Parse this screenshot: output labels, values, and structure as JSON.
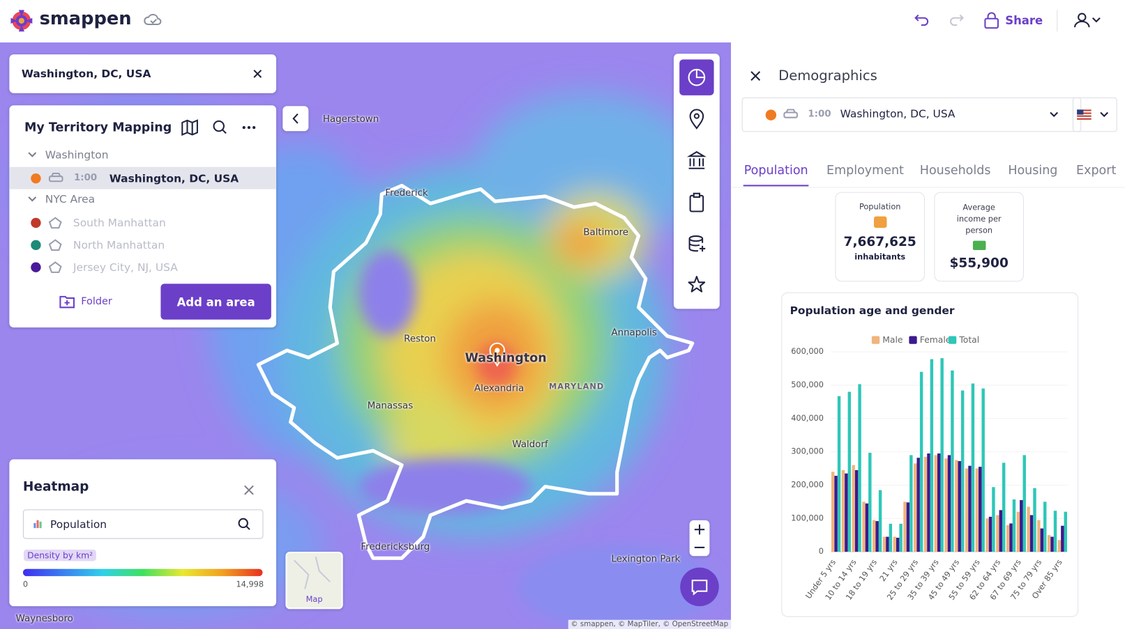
{
  "header": {
    "brand": "smappen",
    "share": "Share"
  },
  "search": {
    "query": "Washington, DC, USA"
  },
  "territory": {
    "title": "My Territory Mapping",
    "groups": [
      {
        "name": "Washington",
        "items": [
          {
            "time": "1:00",
            "label": "Washington, DC, USA"
          }
        ]
      },
      {
        "name": "NYC Area",
        "items": [
          {
            "label": "South Manhattan"
          },
          {
            "label": "North Manhattan"
          },
          {
            "label": "Jersey City, NJ, USA"
          }
        ]
      }
    ],
    "folder": "Folder",
    "add": "Add an area"
  },
  "heatmap": {
    "title": "Heatmap",
    "layer": "Population",
    "legend_title": "Density by km²",
    "min": "0",
    "max": "14,998"
  },
  "map": {
    "labels": [
      "Hagerstown",
      "Frederick",
      "Baltimore",
      "Reston",
      "Washington",
      "Alexandria",
      "MARYLAND",
      "Annapolis",
      "Manassas",
      "Waldorf",
      "Fredericksburg",
      "Lexington Park",
      "Waynesboro"
    ],
    "basemap": "Map",
    "attribution": "© smappen, © MapTiler, © OpenStreetMap"
  },
  "panel": {
    "title": "Demographics",
    "selector_time": "1:00",
    "selector_label": "Washington, DC, USA",
    "tabs": [
      "Population",
      "Employment",
      "Households",
      "Housing",
      "Export"
    ],
    "cards": [
      {
        "title": "Population",
        "value": "7,667,625",
        "unit": "inhabitants"
      },
      {
        "title": "Average income per person",
        "value": "$55,900"
      }
    ]
  },
  "chart_data": {
    "type": "bar",
    "title": "Population age and gender",
    "categories": [
      "Under 5 yrs",
      null,
      "10 to 14 yrs",
      null,
      "18 to 19 yrs",
      null,
      "21 yrs",
      null,
      "25 to 29 yrs",
      null,
      "35 to 39 yrs",
      null,
      "45 to 49 yrs",
      null,
      "55 to 59 yrs",
      null,
      "62 to 64 yrs",
      null,
      "67 to 69 yrs",
      null,
      "75 to 79 yrs",
      null,
      "Over 85 yrs"
    ],
    "series": [
      {
        "name": "Male",
        "color": "#f2b37e",
        "values": [
          240000,
          245000,
          260000,
          150000,
          95000,
          45000,
          45000,
          150000,
          265000,
          285000,
          290000,
          280000,
          275000,
          250000,
          250000,
          100000,
          110000,
          80000,
          120000,
          135000,
          95000,
          50000,
          35000
        ]
      },
      {
        "name": "Female",
        "color": "#3d1a8e",
        "values": [
          228000,
          235000,
          245000,
          145000,
          92000,
          45000,
          42000,
          148000,
          282000,
          295000,
          295000,
          290000,
          272000,
          258000,
          255000,
          105000,
          125000,
          85000,
          155000,
          110000,
          70000,
          45000,
          78000
        ]
      },
      {
        "name": "Total",
        "color": "#2ec7b8",
        "values": [
          467000,
          480000,
          503000,
          297000,
          185000,
          84000,
          84000,
          290000,
          540000,
          578000,
          581000,
          544000,
          484000,
          505000,
          490000,
          194000,
          267000,
          157000,
          290000,
          191000,
          150000,
          123000,
          120000
        ]
      }
    ],
    "ylim": [
      0,
      600000
    ],
    "yticks": [
      0,
      {
        "value": 100000,
        "label": "100,000"
      },
      {
        "value": 200000,
        "label": "200,000"
      },
      {
        "value": 300000,
        "label": "300,000"
      },
      {
        "value": 400000,
        "label": "400,000"
      },
      {
        "value": 500000,
        "label": "500,000"
      },
      {
        "value": 600000,
        "label": "600,000"
      }
    ],
    "grid": true,
    "legend": "top"
  }
}
